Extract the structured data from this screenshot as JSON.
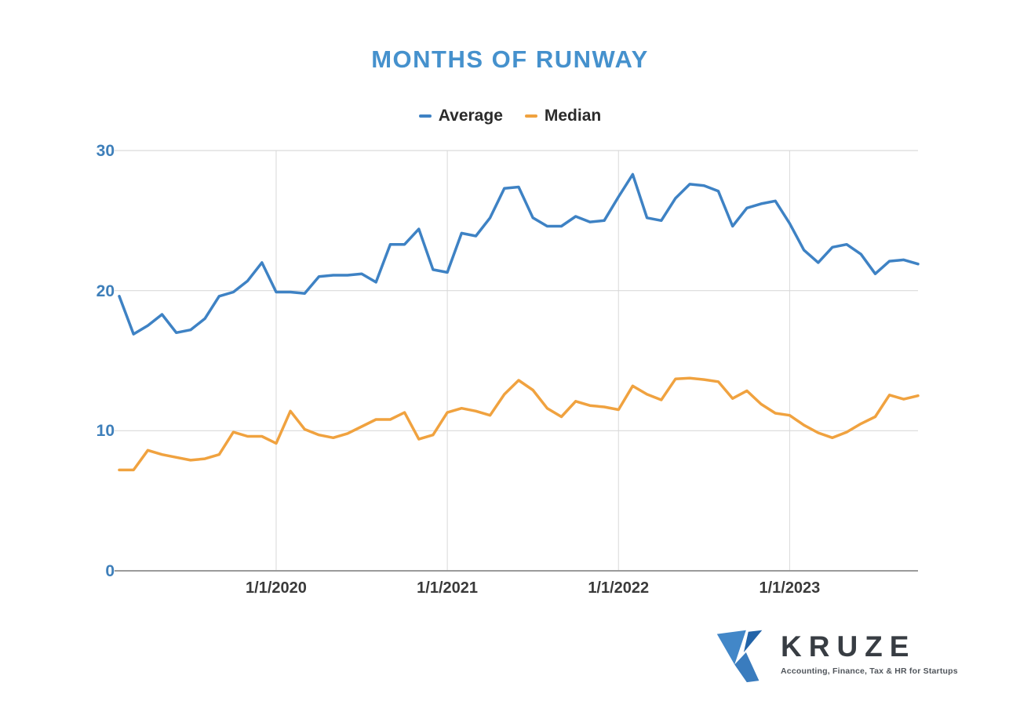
{
  "chart_data": {
    "type": "line",
    "title": "MONTHS OF RUNWAY",
    "xlabel": "",
    "ylabel": "",
    "ylim": [
      0,
      30
    ],
    "grid": true,
    "legend_position": "top",
    "categories": [
      "2/1/2019",
      "3/1/2019",
      "4/1/2019",
      "5/1/2019",
      "6/1/2019",
      "7/1/2019",
      "8/1/2019",
      "9/1/2019",
      "10/1/2019",
      "11/1/2019",
      "12/1/2019",
      "1/1/2020",
      "2/1/2020",
      "3/1/2020",
      "4/1/2020",
      "5/1/2020",
      "6/1/2020",
      "7/1/2020",
      "8/1/2020",
      "9/1/2020",
      "10/1/2020",
      "11/1/2020",
      "12/1/2020",
      "1/1/2021",
      "2/1/2021",
      "3/1/2021",
      "4/1/2021",
      "5/1/2021",
      "6/1/2021",
      "7/1/2021",
      "8/1/2021",
      "9/1/2021",
      "10/1/2021",
      "11/1/2021",
      "12/1/2021",
      "1/1/2022",
      "2/1/2022",
      "3/1/2022",
      "4/1/2022",
      "5/1/2022",
      "6/1/2022",
      "7/1/2022",
      "8/1/2022",
      "9/1/2022",
      "10/1/2022",
      "11/1/2022",
      "12/1/2022",
      "1/1/2023",
      "2/1/2023",
      "3/1/2023",
      "4/1/2023",
      "5/1/2023",
      "6/1/2023",
      "7/1/2023",
      "8/1/2023",
      "9/1/2023",
      "10/1/2023"
    ],
    "series": [
      {
        "name": "Average",
        "color": "#3e82c4",
        "values": [
          19.6,
          16.9,
          17.5,
          18.3,
          17.0,
          17.2,
          18.0,
          19.6,
          19.9,
          20.7,
          22.0,
          19.9,
          19.9,
          19.8,
          21.0,
          21.1,
          21.1,
          21.2,
          20.6,
          23.3,
          23.3,
          24.4,
          21.5,
          21.3,
          24.1,
          23.9,
          25.2,
          27.3,
          27.4,
          25.2,
          24.6,
          24.6,
          25.3,
          24.9,
          25.0,
          26.7,
          28.3,
          25.2,
          25.0,
          26.6,
          27.6,
          27.5,
          27.1,
          24.6,
          25.9,
          26.2,
          26.4,
          24.8,
          22.9,
          22.0,
          23.1,
          23.3,
          22.6,
          21.2,
          22.1,
          22.2,
          21.9
        ]
      },
      {
        "name": "Median",
        "color": "#f0a23f",
        "values": [
          7.2,
          7.2,
          8.6,
          8.3,
          8.1,
          7.9,
          8.0,
          8.3,
          9.9,
          9.6,
          9.6,
          9.1,
          11.4,
          10.1,
          9.7,
          9.5,
          9.8,
          10.3,
          10.8,
          10.8,
          11.3,
          9.4,
          9.7,
          11.3,
          11.6,
          11.4,
          11.1,
          12.6,
          13.6,
          12.9,
          11.6,
          11.0,
          12.1,
          11.8,
          11.7,
          11.5,
          13.2,
          12.6,
          12.2,
          13.7,
          13.75,
          13.65,
          13.5,
          12.3,
          12.85,
          11.9,
          11.25,
          11.1,
          10.4,
          9.85,
          9.5,
          9.9,
          10.5,
          11.0,
          12.55,
          12.25,
          12.5
        ]
      }
    ],
    "y_tick_labels": [
      "30",
      "20",
      "10",
      "0"
    ],
    "y_tick_values": [
      30,
      20,
      10,
      0
    ],
    "x_tick_labels": [
      "1/1/2020",
      "1/1/2021",
      "1/1/2022",
      "1/1/2023"
    ],
    "x_tick_indices": [
      11,
      23,
      35,
      47
    ],
    "gridline_color": "#d9d9d9",
    "axis_line_color": "#9a9a9a",
    "title_color": "#4591cd",
    "y_tick_color": "#3e7fba",
    "x_tick_color": "#3a3a3a"
  },
  "logo": {
    "name": "KRUZE",
    "tagline": "Accounting, Finance, Tax & HR for Startups"
  }
}
